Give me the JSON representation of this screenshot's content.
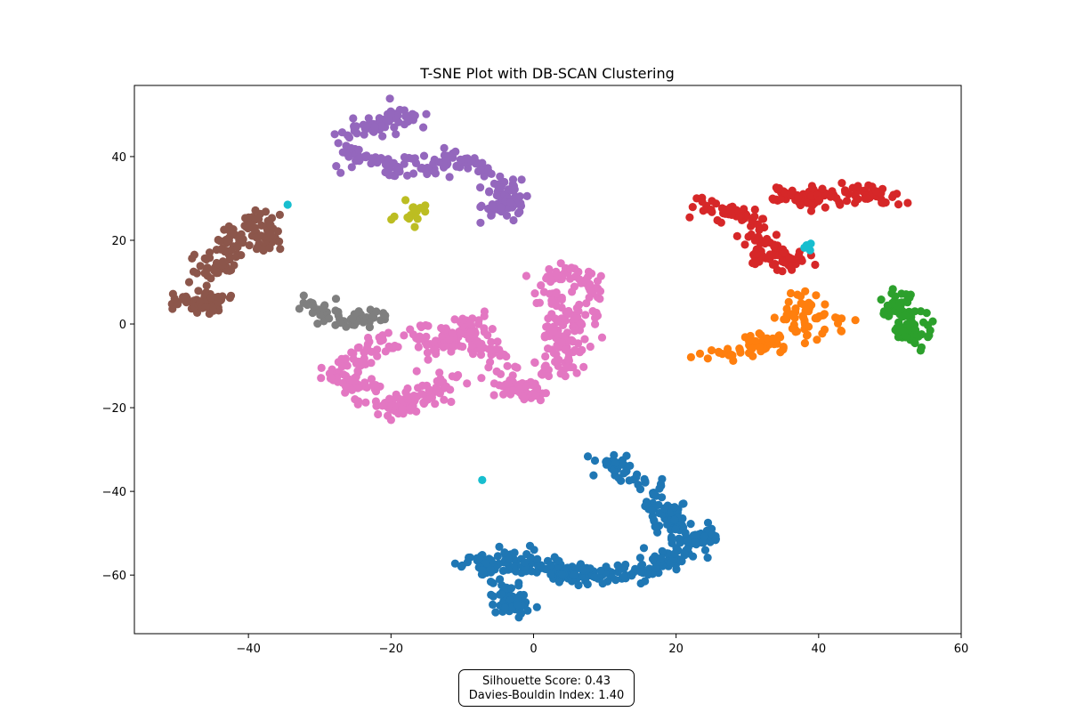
{
  "chart_data": {
    "type": "scatter",
    "title": "T-SNE Plot with DB-SCAN Clustering",
    "xlabel": "",
    "ylabel": "",
    "xlim": [
      -56,
      60
    ],
    "ylim": [
      -74,
      57
    ],
    "xticks": [
      -40,
      -20,
      0,
      20,
      40,
      60
    ],
    "yticks": [
      -60,
      -40,
      -20,
      0,
      20,
      40
    ],
    "xtick_labels": [
      "−40",
      "−20",
      "0",
      "20",
      "40",
      "60"
    ],
    "ytick_labels": [
      "−60",
      "−40",
      "−20",
      "0",
      "20",
      "40"
    ],
    "grid": false,
    "legend": "none",
    "series": [
      {
        "color": "#1f77b4",
        "regions": [
          [
            [
              10,
              -33
            ],
            [
              14,
              -36
            ],
            [
              18,
              -42
            ],
            [
              22,
              -50
            ],
            [
              25,
              -52
            ]
          ],
          [
            [
              18,
              -45
            ],
            [
              20,
              -48
            ],
            [
              22,
              -54
            ],
            [
              18,
              -57
            ],
            [
              15,
              -59
            ]
          ],
          [
            [
              14,
              -60
            ],
            [
              10,
              -60
            ],
            [
              6,
              -60
            ],
            [
              2,
              -58
            ],
            [
              -2,
              -57
            ]
          ],
          [
            [
              -2,
              -56
            ],
            [
              -6,
              -57
            ],
            [
              -9,
              -58
            ]
          ],
          [
            [
              -4,
              -63
            ],
            [
              -3,
              -66
            ],
            [
              -2,
              -68
            ]
          ]
        ],
        "n": 420
      },
      {
        "color": "#ff7f0e",
        "regions": [
          [
            [
              36,
              0
            ],
            [
              38,
              3
            ],
            [
              40,
              1
            ],
            [
              34,
              -3
            ]
          ],
          [
            [
              31,
              -4
            ],
            [
              33,
              -5
            ],
            [
              28,
              -7
            ],
            [
              25,
              -7
            ]
          ],
          [
            [
              42,
              -1
            ],
            [
              37,
              7
            ]
          ]
        ],
        "n": 110
      },
      {
        "color": "#2ca02c",
        "regions": [
          [
            [
              51,
              6
            ],
            [
              50,
              3
            ],
            [
              52,
              4
            ]
          ],
          [
            [
              53,
              1
            ],
            [
              54,
              -1
            ],
            [
              52,
              -3
            ]
          ]
        ],
        "n": 90
      },
      {
        "color": "#d62728",
        "regions": [
          [
            [
              27,
              27
            ],
            [
              30,
              26
            ],
            [
              24,
              28
            ]
          ],
          [
            [
              34,
              30
            ],
            [
              38,
              30
            ],
            [
              42,
              31
            ],
            [
              46,
              31
            ],
            [
              50,
              30
            ]
          ],
          [
            [
              31,
              24
            ],
            [
              32,
              20
            ],
            [
              34,
              16
            ],
            [
              37,
              15
            ],
            [
              31,
              17
            ]
          ]
        ],
        "n": 210
      },
      {
        "color": "#9467bd",
        "regions": [
          [
            [
              -26,
              41
            ],
            [
              -22,
              39
            ],
            [
              -18,
              37
            ],
            [
              -14,
              38
            ],
            [
              -10,
              39
            ],
            [
              -7,
              36
            ]
          ],
          [
            [
              -20,
              49
            ],
            [
              -17,
              50
            ],
            [
              -23,
              47
            ],
            [
              -25,
              46
            ]
          ],
          [
            [
              -5,
              33
            ],
            [
              -3,
              31
            ],
            [
              -4,
              28
            ],
            [
              -6,
              27
            ]
          ]
        ],
        "n": 260
      },
      {
        "color": "#8c564b",
        "regions": [
          [
            [
              -47,
              4
            ],
            [
              -44,
              6
            ],
            [
              -49,
              5
            ]
          ],
          [
            [
              -45,
              12
            ],
            [
              -43,
              16
            ],
            [
              -41,
              20
            ],
            [
              -44,
              22
            ]
          ],
          [
            [
              -38,
              26
            ],
            [
              -39,
              22
            ],
            [
              -37,
              19
            ]
          ]
        ],
        "n": 190
      },
      {
        "color": "#e377c2",
        "regions": [
          [
            [
              -28,
              -12
            ],
            [
              -24,
              -15
            ],
            [
              -20,
              -20
            ],
            [
              -16,
              -18
            ],
            [
              -12,
              -14
            ]
          ],
          [
            [
              -14,
              -5
            ],
            [
              -10,
              -3
            ],
            [
              -6,
              -6
            ],
            [
              -4,
              -15
            ],
            [
              0,
              -16
            ]
          ],
          [
            [
              2,
              -12
            ],
            [
              4,
              -4
            ],
            [
              4,
              3
            ],
            [
              2,
              11
            ],
            [
              6,
              12
            ],
            [
              8,
              7
            ],
            [
              5,
              -10
            ]
          ],
          [
            [
              -26,
              -9
            ],
            [
              -20,
              -3
            ],
            [
              -8,
              1
            ]
          ]
        ],
        "n": 520
      },
      {
        "color": "#7f7f7f",
        "regions": [
          [
            [
              -31,
              3
            ],
            [
              -29,
              2
            ],
            [
              -30,
              5
            ]
          ],
          [
            [
              -25,
              2
            ],
            [
              -22,
              2
            ],
            [
              -27,
              0
            ],
            [
              -23,
              -1
            ]
          ]
        ],
        "n": 55
      },
      {
        "color": "#bcbd22",
        "regions": [
          [
            [
              -18,
              24
            ],
            [
              -17,
              26
            ],
            [
              -16,
              28
            ]
          ]
        ],
        "n": 18
      },
      {
        "color": "#17becf",
        "points": [
          [
            -34.5,
            28.5
          ],
          [
            38.3,
            18.8
          ],
          [
            38.8,
            17.6
          ],
          [
            38.0,
            18.2
          ],
          [
            38.9,
            19.2
          ],
          [
            -7.2,
            -37.3
          ]
        ]
      }
    ]
  },
  "scores": {
    "silhouette": "Silhouette Score: 0.43",
    "davies_bouldin": "Davies-Bouldin Index: 1.40"
  }
}
